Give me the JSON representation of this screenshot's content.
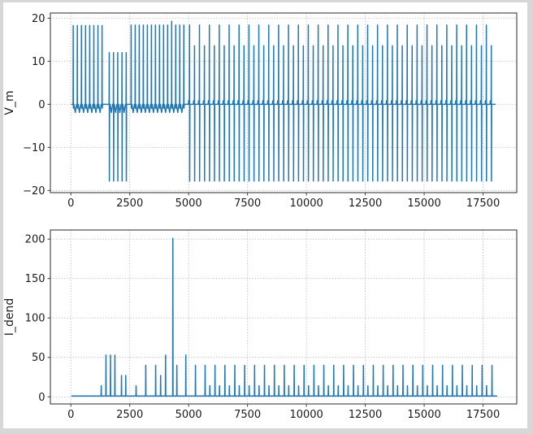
{
  "figure": {
    "page_bg": "#d7d7d7",
    "canvas_bg": "#ffffff",
    "line_color": "#1f77b4",
    "grid_color": "#b2b2b2",
    "spine_color": "#3d3d3d",
    "text_color": "#1a1a1a"
  },
  "chart_data": [
    {
      "type": "line",
      "title": "",
      "xlabel": "",
      "ylabel": "V_m",
      "legend": null,
      "grid": "dotted",
      "xlim": [
        -870,
        18930
      ],
      "ylim": [
        -20.5,
        21.2
      ],
      "xticks": [
        0,
        2500,
        5000,
        7500,
        10000,
        12500,
        15000,
        17500
      ],
      "yticks": [
        -20,
        -10,
        0,
        10,
        20
      ],
      "baseline": {
        "start": 20,
        "end": 18030,
        "value": 0
      },
      "spike_groups": [
        {
          "times": {
            "start": 100,
            "step": 175,
            "count": 8
          },
          "up": 18.3,
          "down": null,
          "scallop_depth": -1.9
        },
        {
          "times": {
            "start": 1630,
            "step": 180,
            "count": 5
          },
          "up": 12.0,
          "down": -17.8,
          "scallop_depth": -1.9
        },
        {
          "times": {
            "start": 2560,
            "step": 172,
            "count": 14
          },
          "up": 18.4,
          "down": null,
          "scallop_depth": -1.9,
          "up_overrides": {
            "10": 19.3
          }
        },
        {
          "times": {
            "start": 5040,
            "step": 420,
            "count": 31
          },
          "up": 18.4,
          "down": -17.8,
          "pre_bump": 0.85
        },
        {
          "times": {
            "start": 5250,
            "step": 420,
            "count": 31
          },
          "up": 13.6,
          "down": -17.8,
          "pre_bump": 0.85
        }
      ]
    },
    {
      "type": "line",
      "title": "",
      "xlabel": "",
      "ylabel": "I_dend",
      "legend": null,
      "grid": "dotted",
      "xlim": [
        -870,
        18930
      ],
      "ylim": [
        -9,
        211.5
      ],
      "xticks": [
        0,
        2500,
        5000,
        7500,
        10000,
        12500,
        15000,
        17500
      ],
      "yticks": [
        0,
        50,
        100,
        150,
        200
      ],
      "baseline": {
        "start": 20,
        "end": 18100,
        "value": 1
      },
      "spikes": [
        [
          1290,
          14
        ],
        [
          1490,
          53
        ],
        [
          1680,
          53
        ],
        [
          1870,
          53
        ],
        [
          2150,
          27
        ],
        [
          2330,
          27
        ],
        [
          2770,
          14
        ],
        [
          3180,
          40
        ],
        [
          3600,
          40
        ],
        [
          3810,
          27
        ],
        [
          4020,
          53
        ],
        [
          4330,
          201
        ],
        [
          4500,
          40
        ],
        [
          4880,
          53
        ],
        [
          5290,
          40
        ],
        [
          5700,
          40
        ],
        [
          5900,
          14
        ]
      ],
      "spike_patterns": [
        {
          "start": 6120,
          "step": 420,
          "count": 29,
          "peak": 40
        },
        {
          "start": 6310,
          "step": 420,
          "count": 28,
          "peak": 14
        }
      ]
    }
  ]
}
